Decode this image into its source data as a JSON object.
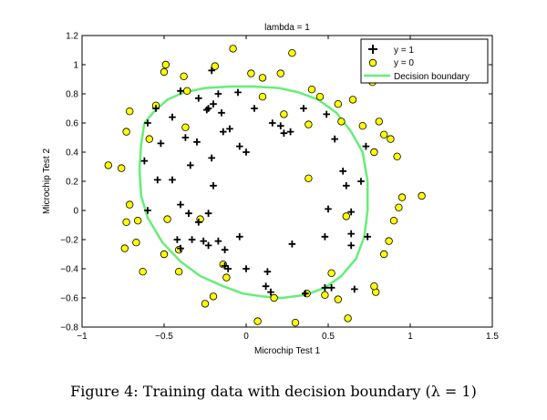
{
  "chart_data": {
    "type": "scatter",
    "title": "lambda = 1",
    "xlabel": "Microchip Test 1",
    "ylabel": "Microchip Test 2",
    "xlim": [
      -1,
      1.5
    ],
    "ylim": [
      -0.8,
      1.2
    ],
    "xticks": [
      "−1",
      "−0.5",
      "0",
      "0.5",
      "1",
      "1.5"
    ],
    "yticks": [
      "−0.8",
      "−0.6",
      "−0.4",
      "−0.2",
      "0",
      "0.2",
      "0.4",
      "0.6",
      "0.8",
      "1",
      "1.2"
    ],
    "grid": false,
    "legend_position": "top-right",
    "colors": {
      "positive": "#000000",
      "negative_fill": "#ffff00",
      "boundary": "#66ee77"
    },
    "series": [
      {
        "name": "y = 1",
        "marker": "plus",
        "points": [
          [
            -0.55,
            0.7
          ],
          [
            -0.45,
            0.64
          ],
          [
            -0.4,
            0.82
          ],
          [
            -0.21,
            0.96
          ],
          [
            -0.6,
            0.6
          ],
          [
            -0.52,
            0.46
          ],
          [
            -0.37,
            0.5
          ],
          [
            -0.3,
            0.47
          ],
          [
            -0.62,
            0.34
          ],
          [
            -0.34,
            0.31
          ],
          [
            -0.21,
            0.36
          ],
          [
            -0.2,
            0.17
          ],
          [
            -0.54,
            0.21
          ],
          [
            -0.45,
            0.21
          ],
          [
            -0.6,
            0.0
          ],
          [
            -0.4,
            0.04
          ],
          [
            -0.35,
            -0.02
          ],
          [
            -0.23,
            -0.02
          ],
          [
            -0.29,
            -0.08
          ],
          [
            -0.42,
            -0.2
          ],
          [
            -0.33,
            -0.2
          ],
          [
            -0.26,
            -0.21
          ],
          [
            -0.17,
            -0.21
          ],
          [
            -0.13,
            -0.27
          ],
          [
            -0.23,
            -0.24
          ],
          [
            -0.4,
            -0.26
          ],
          [
            -0.04,
            -0.18
          ],
          [
            -0.13,
            -0.38
          ],
          [
            -0.11,
            -0.4
          ],
          [
            0.0,
            -0.4
          ],
          [
            0.13,
            -0.42
          ],
          [
            0.12,
            -0.52
          ],
          [
            0.15,
            -0.56
          ],
          [
            0.36,
            -0.57
          ],
          [
            0.48,
            -0.53
          ],
          [
            0.52,
            -0.53
          ],
          [
            0.66,
            -0.54
          ],
          [
            0.28,
            -0.23
          ],
          [
            0.48,
            -0.18
          ],
          [
            0.64,
            -0.16
          ],
          [
            0.64,
            -0.24
          ],
          [
            0.74,
            -0.18
          ],
          [
            0.64,
            -0.01
          ],
          [
            0.5,
            0.01
          ],
          [
            0.61,
            0.17
          ],
          [
            0.7,
            0.2
          ],
          [
            0.59,
            0.27
          ],
          [
            0.54,
            0.49
          ],
          [
            0.73,
            0.44
          ],
          [
            0.49,
            0.66
          ],
          [
            0.35,
            0.7
          ],
          [
            0.27,
            0.54
          ],
          [
            0.21,
            0.58
          ],
          [
            0.23,
            0.53
          ],
          [
            0.16,
            0.6
          ],
          [
            0.05,
            0.7
          ],
          [
            -0.05,
            0.81
          ],
          [
            -0.17,
            0.8
          ],
          [
            -0.29,
            0.77
          ],
          [
            -0.2,
            0.73
          ],
          [
            -0.23,
            0.7
          ],
          [
            -0.15,
            0.67
          ],
          [
            -0.1,
            0.56
          ],
          [
            -0.14,
            0.54
          ],
          [
            -0.04,
            0.44
          ],
          [
            -0.24,
            0.69
          ],
          [
            0.0,
            0.4
          ]
        ]
      },
      {
        "name": "y = 0",
        "marker": "circle",
        "points": [
          [
            -0.5,
            0.95
          ],
          [
            -0.49,
            1.0
          ],
          [
            -0.38,
            0.92
          ],
          [
            -0.19,
            0.99
          ],
          [
            -0.08,
            1.11
          ],
          [
            0.03,
            0.94
          ],
          [
            0.1,
            0.91
          ],
          [
            0.21,
            0.94
          ],
          [
            0.28,
            1.08
          ],
          [
            0.4,
            0.83
          ],
          [
            0.45,
            0.78
          ],
          [
            0.56,
            0.73
          ],
          [
            0.58,
            0.61
          ],
          [
            0.65,
            0.76
          ],
          [
            0.71,
            0.58
          ],
          [
            0.77,
            0.88
          ],
          [
            0.81,
            0.61
          ],
          [
            0.78,
            0.4
          ],
          [
            0.84,
            0.52
          ],
          [
            0.88,
            0.49
          ],
          [
            0.92,
            0.37
          ],
          [
            0.93,
            0.02
          ],
          [
            0.95,
            0.09
          ],
          [
            1.07,
            0.1
          ],
          [
            0.9,
            -0.07
          ],
          [
            0.87,
            -0.21
          ],
          [
            0.84,
            -0.3
          ],
          [
            0.79,
            -0.56
          ],
          [
            0.78,
            -0.52
          ],
          [
            0.62,
            -0.74
          ],
          [
            0.56,
            -0.61
          ],
          [
            0.37,
            -0.57
          ],
          [
            0.3,
            -0.77
          ],
          [
            0.07,
            -0.76
          ],
          [
            -0.2,
            -0.59
          ],
          [
            -0.25,
            -0.64
          ],
          [
            -0.12,
            -0.46
          ],
          [
            -0.14,
            -0.37
          ],
          [
            -0.41,
            -0.42
          ],
          [
            -0.5,
            -0.3
          ],
          [
            -0.63,
            -0.42
          ],
          [
            -0.66,
            -0.07
          ],
          [
            -0.73,
            -0.08
          ],
          [
            -0.71,
            0.04
          ],
          [
            -0.67,
            -0.22
          ],
          [
            -0.74,
            -0.26
          ],
          [
            -0.76,
            0.29
          ],
          [
            -0.84,
            0.31
          ],
          [
            -0.59,
            0.49
          ],
          [
            -0.73,
            0.54
          ],
          [
            -0.71,
            0.68
          ],
          [
            -0.55,
            0.72
          ],
          [
            -0.37,
            0.57
          ],
          [
            -0.48,
            -0.06
          ],
          [
            -0.41,
            -0.27
          ],
          [
            -0.28,
            -0.06
          ],
          [
            0.1,
            0.78
          ],
          [
            0.23,
            0.66
          ],
          [
            0.38,
            0.22
          ],
          [
            0.52,
            -0.43
          ],
          [
            0.61,
            -0.04
          ],
          [
            0.17,
            -0.6
          ],
          [
            0.48,
            -0.58
          ],
          [
            0.38,
            0.59
          ],
          [
            -0.36,
            0.82
          ]
        ]
      },
      {
        "name": "Decision boundary",
        "marker": "line",
        "points": [
          [
            -0.62,
            0.6
          ],
          [
            -0.56,
            0.68
          ],
          [
            -0.48,
            0.76
          ],
          [
            -0.38,
            0.81
          ],
          [
            -0.25,
            0.84
          ],
          [
            -0.1,
            0.85
          ],
          [
            0.05,
            0.85
          ],
          [
            0.2,
            0.84
          ],
          [
            0.32,
            0.81
          ],
          [
            0.44,
            0.76
          ],
          [
            0.55,
            0.67
          ],
          [
            0.64,
            0.54
          ],
          [
            0.71,
            0.4
          ],
          [
            0.74,
            0.2
          ],
          [
            0.74,
            0.0
          ],
          [
            0.72,
            -0.18
          ],
          [
            0.67,
            -0.33
          ],
          [
            0.58,
            -0.45
          ],
          [
            0.48,
            -0.53
          ],
          [
            0.36,
            -0.58
          ],
          [
            0.22,
            -0.6
          ],
          [
            0.1,
            -0.59
          ],
          [
            -0.02,
            -0.57
          ],
          [
            -0.14,
            -0.52
          ],
          [
            -0.28,
            -0.45
          ],
          [
            -0.4,
            -0.35
          ],
          [
            -0.51,
            -0.22
          ],
          [
            -0.6,
            -0.05
          ],
          [
            -0.64,
            0.1
          ],
          [
            -0.65,
            0.28
          ],
          [
            -0.64,
            0.45
          ],
          [
            -0.62,
            0.6
          ]
        ]
      }
    ]
  },
  "caption": "Figure 4: Training data with decision boundary (λ = 1)"
}
